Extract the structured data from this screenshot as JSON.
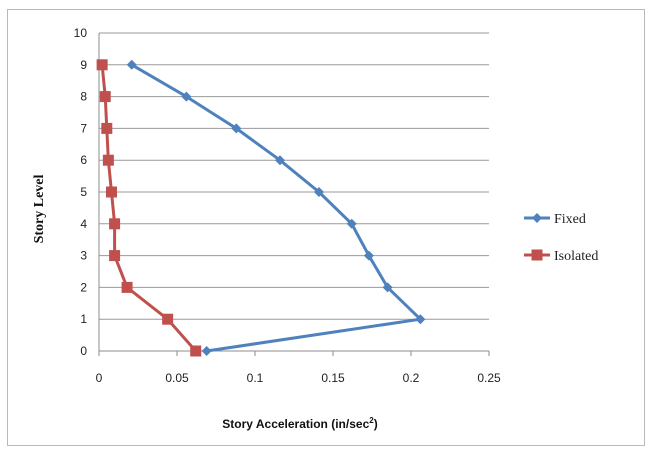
{
  "chart_data": {
    "type": "line",
    "title": "",
    "xlabel": "Story Acceleration (in/sec",
    "xlabel_sup": "2",
    "xlabel_close": ")",
    "ylabel": "Story Level",
    "xlim": [
      0,
      0.25
    ],
    "ylim": [
      0,
      10
    ],
    "x_ticks": [
      "0",
      "0.05",
      "0.1",
      "0.15",
      "0.2",
      "0.25"
    ],
    "y_ticks": [
      "0",
      "1",
      "2",
      "3",
      "4",
      "5",
      "6",
      "7",
      "8",
      "9",
      "10"
    ],
    "grid": "horizontal",
    "legend_position": "right",
    "series": [
      {
        "name": "Fixed",
        "color": "#4f81bd",
        "marker": "diamond",
        "points": [
          {
            "x": 0.069,
            "y": 0
          },
          {
            "x": 0.206,
            "y": 1
          },
          {
            "x": 0.185,
            "y": 2
          },
          {
            "x": 0.173,
            "y": 3
          },
          {
            "x": 0.162,
            "y": 4
          },
          {
            "x": 0.141,
            "y": 5
          },
          {
            "x": 0.116,
            "y": 6
          },
          {
            "x": 0.088,
            "y": 7
          },
          {
            "x": 0.056,
            "y": 8
          },
          {
            "x": 0.021,
            "y": 9
          }
        ]
      },
      {
        "name": "Isolated",
        "color": "#c0504d",
        "marker": "square",
        "points": [
          {
            "x": 0.062,
            "y": 0
          },
          {
            "x": 0.044,
            "y": 1
          },
          {
            "x": 0.018,
            "y": 2
          },
          {
            "x": 0.01,
            "y": 3
          },
          {
            "x": 0.01,
            "y": 4
          },
          {
            "x": 0.008,
            "y": 5
          },
          {
            "x": 0.006,
            "y": 6
          },
          {
            "x": 0.005,
            "y": 7
          },
          {
            "x": 0.004,
            "y": 8
          },
          {
            "x": 0.002,
            "y": 9
          }
        ]
      }
    ]
  }
}
